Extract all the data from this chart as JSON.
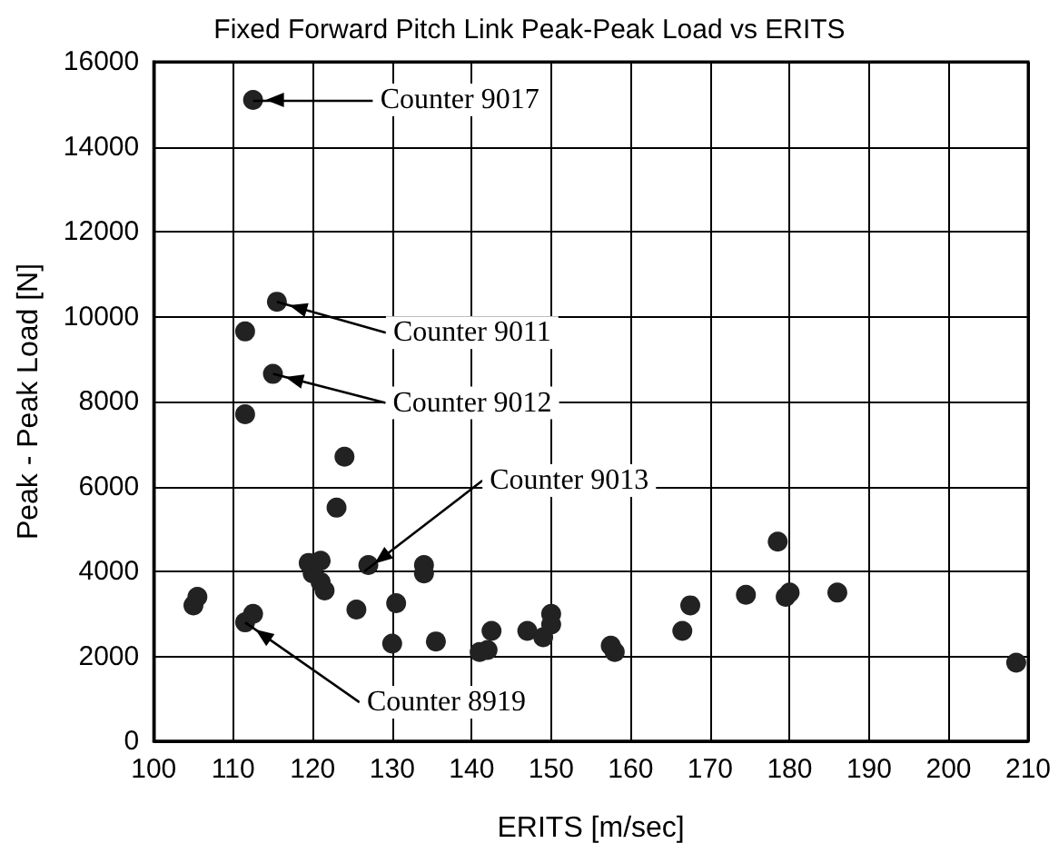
{
  "chart_data": {
    "type": "scatter",
    "title": "Fixed Forward Pitch Link Peak-Peak Load vs ERITS",
    "xlabel": "ERITS [m/sec]",
    "ylabel": "Peak - Peak Load [N]",
    "series": [
      {
        "color": "#222222",
        "x": [
          112.5,
          115.5,
          111.5,
          115,
          111.5,
          124,
          123,
          119.5,
          121,
          120,
          121,
          121.5,
          127,
          125.5,
          130,
          130.5,
          134,
          134,
          135.5,
          141,
          142,
          142.5,
          147,
          149,
          150,
          150,
          157.5,
          158,
          166.5,
          167.5,
          174.5,
          178.5,
          179.5,
          180,
          186,
          208.5,
          105,
          105.5,
          111.5,
          112.5
        ],
        "values": [
          15100,
          10350,
          9650,
          8650,
          7700,
          6700,
          5500,
          4200,
          4250,
          3950,
          3750,
          3550,
          4150,
          3100,
          2300,
          3250,
          4150,
          3950,
          2350,
          2100,
          2150,
          2600,
          2600,
          2450,
          2750,
          3000,
          2250,
          2100,
          2600,
          3200,
          3450,
          4700,
          3400,
          3500,
          3500,
          1850,
          3200,
          3400,
          2800,
          3000
        ]
      }
    ],
    "xlim": [
      100,
      210
    ],
    "xticks": [
      100,
      110,
      120,
      130,
      140,
      150,
      160,
      170,
      180,
      190,
      200,
      210
    ],
    "ylim": [
      0,
      16000
    ],
    "yticks": [
      0,
      2000,
      4000,
      6000,
      8000,
      10000,
      12000,
      14000,
      16000
    ],
    "grid": true,
    "marker": "circle",
    "annotations": [
      {
        "text": "Counter 9017",
        "x": 112.5,
        "y": 15100
      },
      {
        "text": "Counter 9011",
        "x": 115.5,
        "y": 10350
      },
      {
        "text": "Counter 9012",
        "x": 115,
        "y": 8650
      },
      {
        "text": "Counter 9013",
        "x": 126.5,
        "y": 4000
      },
      {
        "text": "Counter 8919",
        "x": 111.5,
        "y": 2800
      }
    ]
  }
}
